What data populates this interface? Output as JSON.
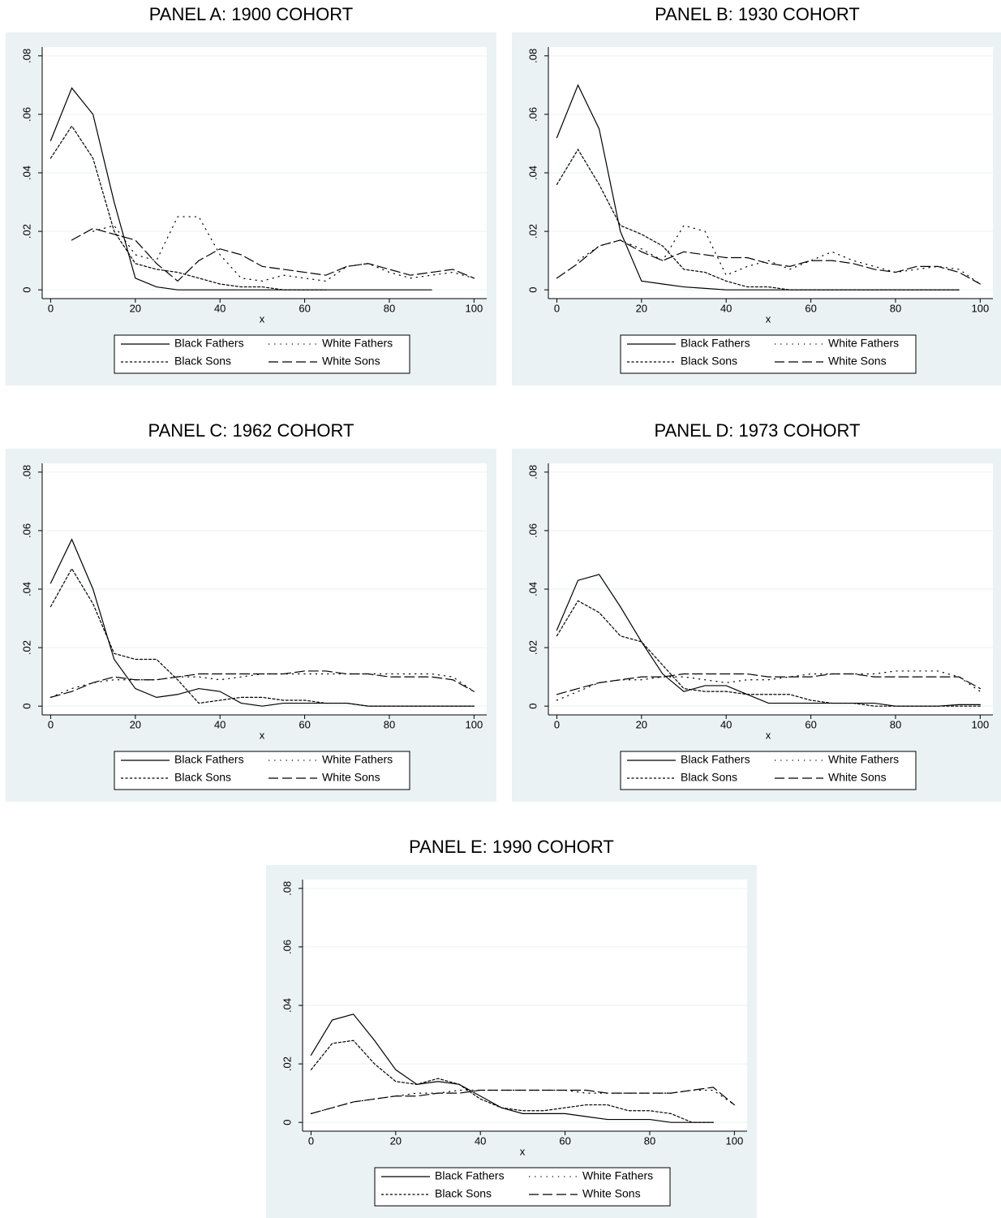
{
  "chart_data": [
    {
      "type": "line",
      "title": "PANEL A: 1900 COHORT",
      "xlabel": "x",
      "x": [
        0,
        5,
        10,
        15,
        20,
        25,
        30,
        35,
        40,
        45,
        50,
        55,
        60,
        65,
        70,
        75,
        80,
        85,
        90,
        95,
        100
      ],
      "series": [
        {
          "name": "Black Fathers",
          "color": "#000",
          "dash": "solid",
          "values": [
            0.051,
            0.069,
            0.06,
            0.03,
            0.004,
            0.001,
            0,
            0,
            0,
            0,
            0,
            0,
            0,
            0,
            0,
            0,
            0,
            0,
            0,
            null,
            null
          ]
        },
        {
          "name": "White Fathers",
          "color": "#000",
          "dash": "dotted",
          "values": [
            null,
            null,
            0.02,
            0.022,
            0.012,
            0.01,
            0.025,
            0.025,
            0.012,
            0.004,
            0.003,
            0.005,
            0.004,
            0.003,
            0.008,
            0.009,
            0.006,
            0.004,
            0.005,
            0.006,
            0.004
          ]
        },
        {
          "name": "Black Sons",
          "color": "#000",
          "dash": "dashed",
          "values": [
            0.045,
            0.056,
            0.045,
            0.02,
            0.009,
            0.007,
            0.006,
            0.004,
            0.002,
            0.001,
            0.001,
            0,
            0,
            0,
            null,
            null,
            null,
            null,
            null,
            null,
            null
          ]
        },
        {
          "name": "White Sons",
          "color": "#000",
          "dash": "longdash",
          "values": [
            null,
            0.017,
            0.021,
            0.019,
            0.017,
            0.009,
            0.003,
            0.01,
            0.014,
            0.012,
            0.008,
            0.007,
            0.006,
            0.005,
            0.008,
            0.009,
            0.007,
            0.005,
            0.006,
            0.007,
            0.004
          ]
        }
      ],
      "xlim": [
        -2,
        103
      ],
      "ylim": [
        -0.003,
        0.083
      ],
      "xticks": [
        0,
        20,
        40,
        60,
        80,
        100
      ],
      "yticks": [
        0,
        {
          "value": 0.02,
          "label": ".02"
        },
        {
          "value": 0.04,
          "label": ".04"
        },
        {
          "value": 0.06,
          "label": ".06"
        },
        {
          "value": 0.08,
          "label": ".08"
        }
      ],
      "grid": true
    },
    {
      "type": "line",
      "title": "PANEL B: 1930 COHORT",
      "xlabel": "x",
      "x": [
        0,
        5,
        10,
        15,
        20,
        25,
        30,
        35,
        40,
        45,
        50,
        55,
        60,
        65,
        70,
        75,
        80,
        85,
        90,
        95,
        100
      ],
      "series": [
        {
          "name": "Black Fathers",
          "color": "#000",
          "dash": "solid",
          "values": [
            0.052,
            0.07,
            0.055,
            0.02,
            0.003,
            0.002,
            0.001,
            0.0005,
            0,
            0,
            0,
            0,
            0,
            0,
            0,
            0,
            0,
            0,
            0,
            0,
            null
          ]
        },
        {
          "name": "White Fathers",
          "color": "#000",
          "dash": "dotted",
          "values": [
            null,
            0.01,
            0.015,
            0.017,
            0.014,
            0.01,
            0.022,
            0.02,
            0.005,
            0.008,
            0.01,
            0.007,
            0.01,
            0.013,
            0.01,
            0.008,
            0.006,
            0.007,
            0.008,
            0.007,
            0.002
          ]
        },
        {
          "name": "Black Sons",
          "color": "#000",
          "dash": "dashed",
          "values": [
            0.036,
            0.048,
            0.036,
            0.022,
            0.019,
            0.015,
            0.007,
            0.006,
            0.003,
            0.001,
            0.001,
            0,
            0,
            0,
            0,
            0,
            0,
            0,
            0,
            0,
            null
          ]
        },
        {
          "name": "White Sons",
          "color": "#000",
          "dash": "longdash",
          "values": [
            0.004,
            0.009,
            0.015,
            0.017,
            0.013,
            0.01,
            0.013,
            0.012,
            0.011,
            0.011,
            0.009,
            0.008,
            0.01,
            0.01,
            0.009,
            0.007,
            0.006,
            0.008,
            0.008,
            0.006,
            0.002
          ]
        }
      ],
      "xlim": [
        -2,
        103
      ],
      "ylim": [
        -0.003,
        0.083
      ],
      "xticks": [
        0,
        20,
        40,
        60,
        80,
        100
      ],
      "yticks": [
        0,
        {
          "value": 0.02,
          "label": ".02"
        },
        {
          "value": 0.04,
          "label": ".04"
        },
        {
          "value": 0.06,
          "label": ".06"
        },
        {
          "value": 0.08,
          "label": ".08"
        }
      ],
      "grid": true
    },
    {
      "type": "line",
      "title": "PANEL C: 1962 COHORT",
      "xlabel": "x",
      "x": [
        0,
        5,
        10,
        15,
        20,
        25,
        30,
        35,
        40,
        45,
        50,
        55,
        60,
        65,
        70,
        75,
        80,
        85,
        90,
        95,
        100
      ],
      "series": [
        {
          "name": "Black Fathers",
          "color": "#000",
          "dash": "solid",
          "values": [
            0.042,
            0.057,
            0.04,
            0.016,
            0.006,
            0.003,
            0.004,
            0.006,
            0.005,
            0.001,
            0,
            0.001,
            0.001,
            0.001,
            0.001,
            0,
            0,
            0,
            0,
            0,
            0
          ]
        },
        {
          "name": "White Fathers",
          "color": "#000",
          "dash": "dotted",
          "values": [
            0.003,
            0.006,
            0.008,
            0.009,
            0.009,
            0.009,
            0.01,
            0.01,
            0.009,
            0.01,
            0.011,
            0.011,
            0.011,
            0.011,
            0.011,
            0.011,
            0.011,
            0.011,
            0.011,
            0.01,
            0.005
          ]
        },
        {
          "name": "Black Sons",
          "color": "#000",
          "dash": "dashed",
          "values": [
            0.034,
            0.047,
            0.035,
            0.018,
            0.016,
            0.016,
            0.009,
            0.001,
            0.002,
            0.003,
            0.003,
            0.002,
            0.002,
            0.001,
            0.001,
            0,
            0,
            0,
            0,
            0,
            0
          ]
        },
        {
          "name": "White Sons",
          "color": "#000",
          "dash": "longdash",
          "values": [
            0.003,
            0.005,
            0.008,
            0.01,
            0.009,
            0.009,
            0.01,
            0.011,
            0.011,
            0.011,
            0.011,
            0.011,
            0.012,
            0.012,
            0.011,
            0.011,
            0.01,
            0.01,
            0.01,
            0.009,
            0.005
          ]
        }
      ],
      "xlim": [
        -2,
        103
      ],
      "ylim": [
        -0.003,
        0.083
      ],
      "xticks": [
        0,
        20,
        40,
        60,
        80,
        100
      ],
      "yticks": [
        0,
        {
          "value": 0.02,
          "label": ".02"
        },
        {
          "value": 0.04,
          "label": ".04"
        },
        {
          "value": 0.06,
          "label": ".06"
        },
        {
          "value": 0.08,
          "label": ".08"
        }
      ],
      "grid": true
    },
    {
      "type": "line",
      "title": "PANEL D: 1973 COHORT",
      "xlabel": "x",
      "x": [
        0,
        5,
        10,
        15,
        20,
        25,
        30,
        35,
        40,
        45,
        50,
        55,
        60,
        65,
        70,
        75,
        80,
        85,
        90,
        95,
        100
      ],
      "series": [
        {
          "name": "Black Fathers",
          "color": "#000",
          "dash": "solid",
          "values": [
            0.026,
            0.043,
            0.045,
            0.034,
            0.022,
            0.011,
            0.005,
            0.007,
            0.007,
            0.004,
            0.001,
            0.001,
            0.001,
            0.001,
            0.001,
            0.001,
            0,
            0,
            0,
            0.0005,
            0.0005
          ]
        },
        {
          "name": "White Fathers",
          "color": "#000",
          "dash": "dotted",
          "values": [
            0.002,
            0.005,
            0.008,
            0.009,
            0.009,
            0.01,
            0.01,
            0.009,
            0.008,
            0.009,
            0.009,
            0.01,
            0.011,
            0.011,
            0.011,
            0.011,
            0.012,
            0.012,
            0.012,
            0.01,
            0.005
          ]
        },
        {
          "name": "Black Sons",
          "color": "#000",
          "dash": "dashed",
          "values": [
            0.024,
            0.036,
            0.032,
            0.024,
            0.022,
            0.014,
            0.006,
            0.005,
            0.005,
            0.004,
            0.004,
            0.004,
            0.002,
            0.001,
            0.001,
            0,
            0,
            0,
            0,
            0,
            0
          ]
        },
        {
          "name": "White Sons",
          "color": "#000",
          "dash": "longdash",
          "values": [
            0.004,
            0.006,
            0.008,
            0.009,
            0.01,
            0.01,
            0.011,
            0.011,
            0.011,
            0.011,
            0.01,
            0.01,
            0.01,
            0.011,
            0.011,
            0.01,
            0.01,
            0.01,
            0.01,
            0.01,
            0.006
          ]
        }
      ],
      "xlim": [
        -2,
        103
      ],
      "ylim": [
        -0.003,
        0.083
      ],
      "xticks": [
        0,
        20,
        40,
        60,
        80,
        100
      ],
      "yticks": [
        0,
        {
          "value": 0.02,
          "label": ".02"
        },
        {
          "value": 0.04,
          "label": ".04"
        },
        {
          "value": 0.06,
          "label": ".06"
        },
        {
          "value": 0.08,
          "label": ".08"
        }
      ],
      "grid": true
    },
    {
      "type": "line",
      "title": "PANEL E: 1990 COHORT",
      "xlabel": "x",
      "x": [
        0,
        5,
        10,
        15,
        20,
        25,
        30,
        35,
        40,
        45,
        50,
        55,
        60,
        65,
        70,
        75,
        80,
        85,
        90,
        95,
        100
      ],
      "series": [
        {
          "name": "Black Fathers",
          "color": "#000",
          "dash": "solid",
          "values": [
            0.023,
            0.035,
            0.037,
            0.028,
            0.018,
            0.013,
            0.014,
            0.013,
            0.009,
            0.005,
            0.003,
            0.003,
            0.003,
            0.002,
            0.001,
            0.001,
            0.001,
            0,
            0,
            0,
            null
          ]
        },
        {
          "name": "White Fathers",
          "color": "#000",
          "dash": "dotted",
          "values": [
            0.003,
            0.005,
            0.007,
            0.008,
            0.009,
            0.01,
            0.01,
            0.011,
            0.011,
            0.011,
            0.011,
            0.011,
            0.011,
            0.01,
            0.01,
            0.01,
            0.01,
            0.01,
            0.011,
            0.011,
            0.006
          ]
        },
        {
          "name": "Black Sons",
          "color": "#000",
          "dash": "dashed",
          "values": [
            0.018,
            0.027,
            0.028,
            0.02,
            0.014,
            0.013,
            0.015,
            0.013,
            0.008,
            0.005,
            0.004,
            0.004,
            0.005,
            0.006,
            0.006,
            0.004,
            0.004,
            0.003,
            0,
            0,
            null
          ]
        },
        {
          "name": "White Sons",
          "color": "#000",
          "dash": "longdash",
          "values": [
            0.003,
            0.005,
            0.007,
            0.008,
            0.009,
            0.009,
            0.01,
            0.01,
            0.011,
            0.011,
            0.011,
            0.011,
            0.011,
            0.011,
            0.01,
            0.01,
            0.01,
            0.01,
            0.011,
            0.012,
            0.006
          ]
        }
      ],
      "xlim": [
        -2,
        103
      ],
      "ylim": [
        -0.003,
        0.083
      ],
      "xticks": [
        0,
        20,
        40,
        60,
        80,
        100
      ],
      "yticks": [
        0,
        {
          "value": 0.02,
          "label": ".02"
        },
        {
          "value": 0.04,
          "label": ".04"
        },
        {
          "value": 0.06,
          "label": ".06"
        },
        {
          "value": 0.08,
          "label": ".08"
        }
      ],
      "grid": true
    }
  ]
}
